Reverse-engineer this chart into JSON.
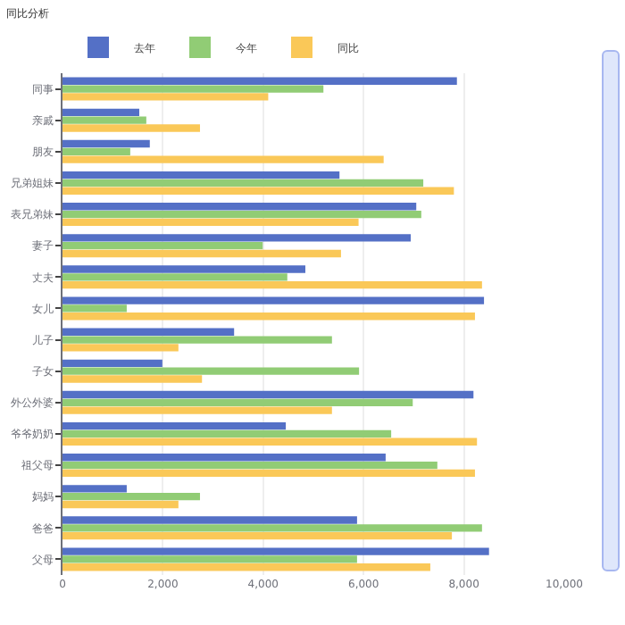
{
  "chart_data": {
    "type": "bar",
    "orientation": "horizontal",
    "title": "同比分析",
    "categories": [
      "同事",
      "亲戚",
      "朋友",
      "兄弟姐妹",
      "表兄弟妹",
      "妻子",
      "丈夫",
      "女儿",
      "儿子",
      "子女",
      "外公外婆",
      "爷爷奶奶",
      "祖父母",
      "妈妈",
      "爸爸",
      "父母"
    ],
    "series": [
      {
        "name": "去年",
        "color": "#5470c6",
        "values": [
          7860,
          1530,
          1740,
          5520,
          7050,
          6940,
          4840,
          8400,
          3420,
          1990,
          8190,
          4450,
          6440,
          1280,
          5870,
          8500
        ]
      },
      {
        "name": "今年",
        "color": "#91cc75",
        "values": [
          5200,
          1670,
          1350,
          7190,
          7150,
          3990,
          4480,
          1280,
          5370,
          5910,
          6980,
          6550,
          7470,
          2740,
          8360,
          5870
        ]
      },
      {
        "name": "同比",
        "color": "#fac858",
        "values": [
          4100,
          2740,
          6400,
          7800,
          5900,
          5550,
          8360,
          8220,
          2310,
          2780,
          5370,
          8260,
          8220,
          2310,
          7760,
          7330
        ]
      }
    ],
    "xlim": [
      0,
      10000
    ],
    "xticks": [
      {
        "value": 0,
        "label": "0"
      },
      {
        "value": 2000,
        "label": "2,000"
      },
      {
        "value": 4000,
        "label": "4,000"
      },
      {
        "value": 6000,
        "label": "6,000"
      },
      {
        "value": 8000,
        "label": "8,000"
      },
      {
        "value": 10000,
        "label": "10,000"
      }
    ],
    "grid": "x",
    "legend": "top left"
  }
}
